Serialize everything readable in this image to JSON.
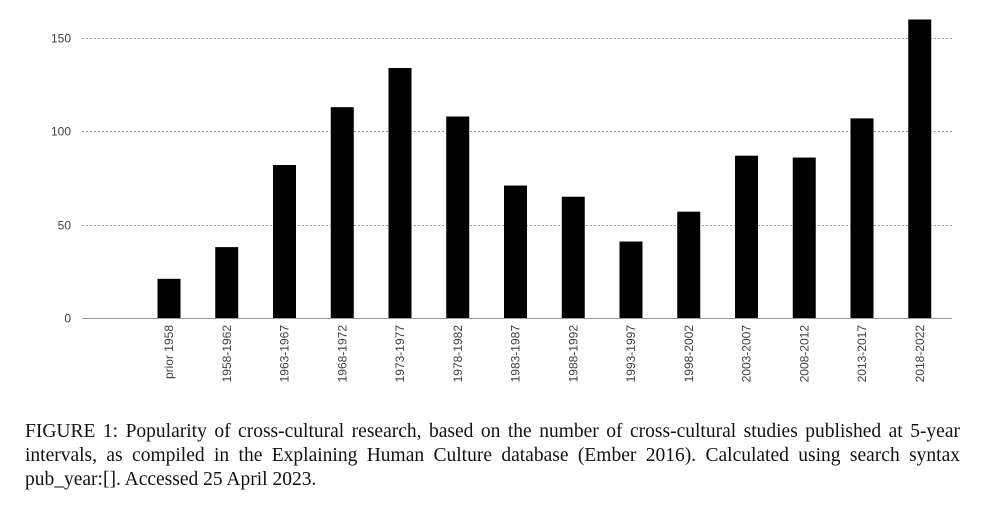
{
  "chart_data": {
    "type": "bar",
    "categories": [
      "prior 1958",
      "1958-1962",
      "1963-1967",
      "1968-1972",
      "1973-1977",
      "1978-1982",
      "1983-1987",
      "1988-1992",
      "1993-1997",
      "1998-2002",
      "2003-2007",
      "2008-2012",
      "2013-2017",
      "2018-2022"
    ],
    "values": [
      21,
      38,
      82,
      113,
      134,
      108,
      71,
      65,
      41,
      57,
      87,
      86,
      107,
      160
    ],
    "ylim": [
      0,
      160
    ],
    "yticks": [
      0,
      50,
      100,
      150
    ],
    "bar_color": "#000000",
    "grid": true,
    "legend": "none"
  },
  "caption": "FIGURE 1: Popularity of cross-cultural research, based on the number of cross-cultural studies published at 5-year intervals, as compiled in the Explaining Human Culture database (Ember 2016). Calculated using search syntax pub_year:[]. Accessed 25 April 2023."
}
